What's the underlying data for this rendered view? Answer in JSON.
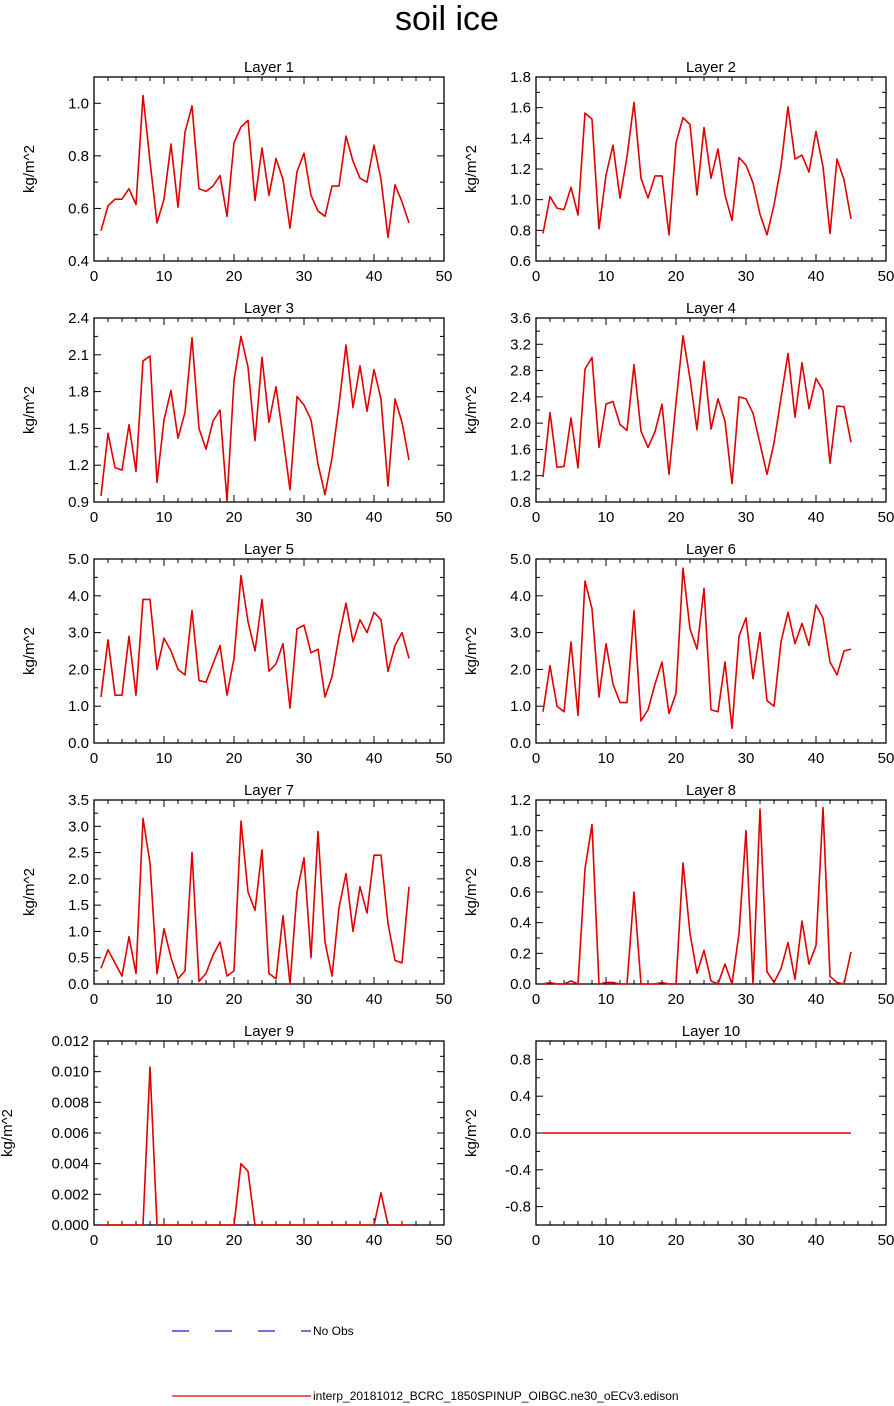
{
  "figure": {
    "title": "soil ice"
  },
  "legend": {
    "entries": [
      {
        "label": "No Obs",
        "style": "dashed",
        "color": "#1f1fcc"
      },
      {
        "label": "interp_20181012_BCRC_1850SPINUP_OIBGC.ne30_oECv3.edison",
        "style": "solid",
        "color": "#e00000"
      }
    ]
  },
  "chart_data": [
    {
      "type": "line",
      "title": "Layer 1",
      "ylabel": "kg/m^2",
      "xlim": [
        0,
        50
      ],
      "ylim": [
        0.4,
        1.1
      ],
      "xticks": [
        0,
        10,
        20,
        30,
        40,
        50
      ],
      "yticks": [
        0.4,
        0.6,
        0.8,
        1.0
      ],
      "ytick_labels": [
        "0.4",
        "0.6",
        "0.8",
        "1.0"
      ],
      "series": [
        {
          "color": "#e00000",
          "x_start": 1,
          "values": [
            0.515,
            0.61,
            0.635,
            0.635,
            0.675,
            0.615,
            1.03,
            0.78,
            0.545,
            0.635,
            0.845,
            0.605,
            0.89,
            0.99,
            0.675,
            0.665,
            0.685,
            0.725,
            0.57,
            0.85,
            0.91,
            0.935,
            0.63,
            0.83,
            0.65,
            0.79,
            0.71,
            0.525,
            0.74,
            0.81,
            0.65,
            0.59,
            0.57,
            0.685,
            0.685,
            0.875,
            0.78,
            0.715,
            0.7,
            0.84,
            0.71,
            0.49,
            0.69,
            0.625,
            0.545
          ]
        }
      ]
    },
    {
      "type": "line",
      "title": "Layer 2",
      "ylabel": "kg/m^2",
      "xlim": [
        0,
        50
      ],
      "ylim": [
        0.6,
        1.8
      ],
      "xticks": [
        0,
        10,
        20,
        30,
        40,
        50
      ],
      "yticks": [
        0.6,
        0.8,
        1.0,
        1.2,
        1.4,
        1.6,
        1.8
      ],
      "ytick_labels": [
        "0.6",
        "0.8",
        "1.0",
        "1.2",
        "1.4",
        "1.6",
        "1.8"
      ],
      "series": [
        {
          "color": "#e00000",
          "x_start": 1,
          "values": [
            0.78,
            1.02,
            0.945,
            0.935,
            1.08,
            0.9,
            1.565,
            1.525,
            0.81,
            1.16,
            1.355,
            1.01,
            1.28,
            1.635,
            1.14,
            1.01,
            1.155,
            1.155,
            0.77,
            1.37,
            1.535,
            1.49,
            1.03,
            1.47,
            1.14,
            1.33,
            1.03,
            0.865,
            1.275,
            1.225,
            1.11,
            0.905,
            0.77,
            0.965,
            1.22,
            1.605,
            1.265,
            1.29,
            1.18,
            1.445,
            1.215,
            0.78,
            1.265,
            1.13,
            0.875
          ]
        }
      ]
    },
    {
      "type": "line",
      "title": "Layer 3",
      "ylabel": "kg/m^2",
      "xlim": [
        0,
        50
      ],
      "ylim": [
        0.9,
        2.4
      ],
      "xticks": [
        0,
        10,
        20,
        30,
        40,
        50
      ],
      "yticks": [
        0.9,
        1.2,
        1.5,
        1.8,
        2.1,
        2.4
      ],
      "ytick_labels": [
        "0.9",
        "1.2",
        "1.5",
        "1.8",
        "2.1",
        "2.4"
      ],
      "series": [
        {
          "color": "#e00000",
          "x_start": 1,
          "values": [
            0.95,
            1.46,
            1.18,
            1.16,
            1.53,
            1.15,
            2.05,
            2.09,
            1.06,
            1.57,
            1.81,
            1.42,
            1.63,
            2.24,
            1.5,
            1.33,
            1.56,
            1.65,
            0.91,
            1.89,
            2.25,
            2.0,
            1.4,
            2.08,
            1.55,
            1.84,
            1.43,
            1.0,
            1.76,
            1.69,
            1.57,
            1.21,
            0.96,
            1.26,
            1.69,
            2.18,
            1.67,
            2.01,
            1.64,
            1.98,
            1.74,
            1.03,
            1.74,
            1.55,
            1.24
          ]
        }
      ]
    },
    {
      "type": "line",
      "title": "Layer 4",
      "ylabel": "kg/m^2",
      "xlim": [
        0,
        50
      ],
      "ylim": [
        0.8,
        3.6
      ],
      "xticks": [
        0,
        10,
        20,
        30,
        40,
        50
      ],
      "yticks": [
        0.8,
        1.2,
        1.6,
        2.0,
        2.4,
        2.8,
        3.2,
        3.6
      ],
      "ytick_labels": [
        "0.8",
        "1.2",
        "1.6",
        "2.0",
        "2.4",
        "2.8",
        "3.2",
        "3.6"
      ],
      "series": [
        {
          "color": "#e00000",
          "x_start": 1,
          "values": [
            1.18,
            2.16,
            1.33,
            1.34,
            2.08,
            1.32,
            2.82,
            3.0,
            1.63,
            2.29,
            2.33,
            1.98,
            1.89,
            2.89,
            1.88,
            1.63,
            1.87,
            2.29,
            1.22,
            2.31,
            3.33,
            2.68,
            1.9,
            2.94,
            1.91,
            2.37,
            2.03,
            1.08,
            2.4,
            2.37,
            2.15,
            1.69,
            1.22,
            1.7,
            2.38,
            3.06,
            2.09,
            2.92,
            2.22,
            2.68,
            2.5,
            1.39,
            2.26,
            2.25,
            1.71
          ]
        }
      ]
    },
    {
      "type": "line",
      "title": "Layer 5",
      "ylabel": "kg/m^2",
      "xlim": [
        0,
        50
      ],
      "ylim": [
        0.0,
        5.0
      ],
      "xticks": [
        0,
        10,
        20,
        30,
        40,
        50
      ],
      "yticks": [
        0,
        1,
        2,
        3,
        4,
        5
      ],
      "ytick_labels": [
        "0.0",
        "1.0",
        "2.0",
        "3.0",
        "4.0",
        "5.0"
      ],
      "series": [
        {
          "color": "#e00000",
          "x_start": 1,
          "values": [
            1.25,
            2.8,
            1.3,
            1.3,
            2.9,
            1.3,
            3.9,
            3.9,
            2.0,
            2.85,
            2.5,
            2.0,
            1.85,
            3.6,
            1.7,
            1.65,
            2.15,
            2.65,
            1.3,
            2.3,
            4.55,
            3.3,
            2.5,
            3.9,
            1.95,
            2.15,
            2.7,
            0.95,
            3.1,
            3.2,
            2.45,
            2.55,
            1.25,
            1.8,
            2.9,
            3.8,
            2.75,
            3.35,
            3.0,
            3.55,
            3.35,
            1.95,
            2.65,
            3.0,
            2.3
          ]
        }
      ]
    },
    {
      "type": "line",
      "title": "Layer 6",
      "ylabel": "kg/m^2",
      "xlim": [
        0,
        50
      ],
      "ylim": [
        0.0,
        5.0
      ],
      "xticks": [
        0,
        10,
        20,
        30,
        40,
        50
      ],
      "yticks": [
        0,
        1,
        2,
        3,
        4,
        5
      ],
      "ytick_labels": [
        "0.0",
        "1.0",
        "2.0",
        "3.0",
        "4.0",
        "5.0"
      ],
      "series": [
        {
          "color": "#e00000",
          "x_start": 1,
          "values": [
            0.85,
            2.1,
            1.0,
            0.85,
            2.75,
            0.75,
            4.4,
            3.65,
            1.25,
            2.7,
            1.6,
            1.1,
            1.1,
            3.6,
            0.6,
            0.9,
            1.6,
            2.2,
            0.8,
            1.35,
            4.75,
            3.1,
            2.55,
            4.2,
            0.9,
            0.85,
            2.2,
            0.4,
            2.9,
            3.4,
            1.75,
            3.0,
            1.15,
            1.0,
            2.75,
            3.55,
            2.7,
            3.25,
            2.65,
            3.75,
            3.4,
            2.2,
            1.85,
            2.5,
            2.55
          ]
        }
      ]
    },
    {
      "type": "line",
      "title": "Layer 7",
      "ylabel": "kg/m^2",
      "xlim": [
        0,
        50
      ],
      "ylim": [
        0.0,
        3.5
      ],
      "xticks": [
        0,
        10,
        20,
        30,
        40,
        50
      ],
      "yticks": [
        0,
        0.5,
        1.0,
        1.5,
        2.0,
        2.5,
        3.0,
        3.5
      ],
      "ytick_labels": [
        "0.0",
        "0.5",
        "1.0",
        "1.5",
        "2.0",
        "2.5",
        "3.0",
        "3.5"
      ],
      "series": [
        {
          "color": "#e00000",
          "x_start": 1,
          "values": [
            0.3,
            0.65,
            0.4,
            0.15,
            0.9,
            0.2,
            3.15,
            2.3,
            0.2,
            1.05,
            0.5,
            0.1,
            0.25,
            2.5,
            0.05,
            0.2,
            0.55,
            0.8,
            0.15,
            0.25,
            3.1,
            1.75,
            1.4,
            2.55,
            0.2,
            0.1,
            1.3,
            0.0,
            1.75,
            2.4,
            0.5,
            2.9,
            0.8,
            0.15,
            1.45,
            2.1,
            1.0,
            1.85,
            1.35,
            2.45,
            2.45,
            1.15,
            0.45,
            0.4,
            1.85
          ]
        }
      ]
    },
    {
      "type": "line",
      "title": "Layer 8",
      "ylabel": "kg/m^2",
      "xlim": [
        0,
        50
      ],
      "ylim": [
        0.0,
        1.2
      ],
      "xticks": [
        0,
        10,
        20,
        30,
        40,
        50
      ],
      "yticks": [
        0,
        0.2,
        0.4,
        0.6,
        0.8,
        1.0,
        1.2
      ],
      "ytick_labels": [
        "0.0",
        "0.2",
        "0.4",
        "0.6",
        "0.8",
        "1.0",
        "1.2"
      ],
      "series": [
        {
          "color": "#e00000",
          "x_start": 1,
          "values": [
            0.0,
            0.01,
            0.0,
            0.0,
            0.02,
            0.0,
            0.75,
            1.04,
            0.0,
            0.01,
            0.01,
            0.0,
            0.0,
            0.6,
            0.0,
            0.0,
            0.0,
            0.01,
            0.0,
            0.0,
            0.79,
            0.33,
            0.07,
            0.22,
            0.02,
            0.0,
            0.13,
            0.0,
            0.33,
            1.0,
            0.0,
            1.14,
            0.08,
            0.01,
            0.1,
            0.27,
            0.03,
            0.41,
            0.13,
            0.25,
            1.15,
            0.05,
            0.01,
            0.0,
            0.21
          ]
        }
      ]
    },
    {
      "type": "line",
      "title": "Layer 9",
      "ylabel": "kg/m^2",
      "xlim": [
        0,
        50
      ],
      "ylim": [
        0.0,
        0.012
      ],
      "xticks": [
        0,
        10,
        20,
        30,
        40,
        50
      ],
      "yticks": [
        0,
        0.002,
        0.004,
        0.006,
        0.008,
        0.01,
        0.012
      ],
      "ytick_labels": [
        "0.000",
        "0.002",
        "0.004",
        "0.006",
        "0.008",
        "0.010",
        "0.012"
      ],
      "series": [
        {
          "color": "#e00000",
          "x_start": 1,
          "values": [
            0,
            0,
            0,
            0,
            0,
            0,
            0,
            0.0103,
            0,
            0,
            0,
            0,
            0,
            0,
            0,
            0,
            0,
            0,
            0,
            0,
            0.004,
            0.0035,
            0,
            0,
            0,
            0,
            0,
            0,
            0,
            0,
            0,
            0,
            0,
            0,
            0,
            0,
            0,
            0,
            0,
            0,
            0.0021,
            0,
            0,
            0,
            0
          ]
        }
      ]
    },
    {
      "type": "line",
      "title": "Layer 10",
      "ylabel": "kg/m^2",
      "xlim": [
        0,
        50
      ],
      "ylim": [
        -1.0,
        1.0
      ],
      "xticks": [
        0,
        10,
        20,
        30,
        40,
        50
      ],
      "yticks": [
        -0.8,
        -0.4,
        0.0,
        0.4,
        0.8
      ],
      "ytick_labels": [
        "-0.8",
        "-0.4",
        "0.0",
        "0.4",
        "0.8"
      ],
      "series": [
        {
          "color": "#e00000",
          "x_start": 1,
          "values": [
            0,
            0,
            0,
            0,
            0,
            0,
            0,
            0,
            0,
            0,
            0,
            0,
            0,
            0,
            0,
            0,
            0,
            0,
            0,
            0,
            0,
            0,
            0,
            0,
            0,
            0,
            0,
            0,
            0,
            0,
            0,
            0,
            0,
            0,
            0,
            0,
            0,
            0,
            0,
            0,
            0,
            0,
            0,
            0,
            0
          ]
        }
      ]
    }
  ]
}
